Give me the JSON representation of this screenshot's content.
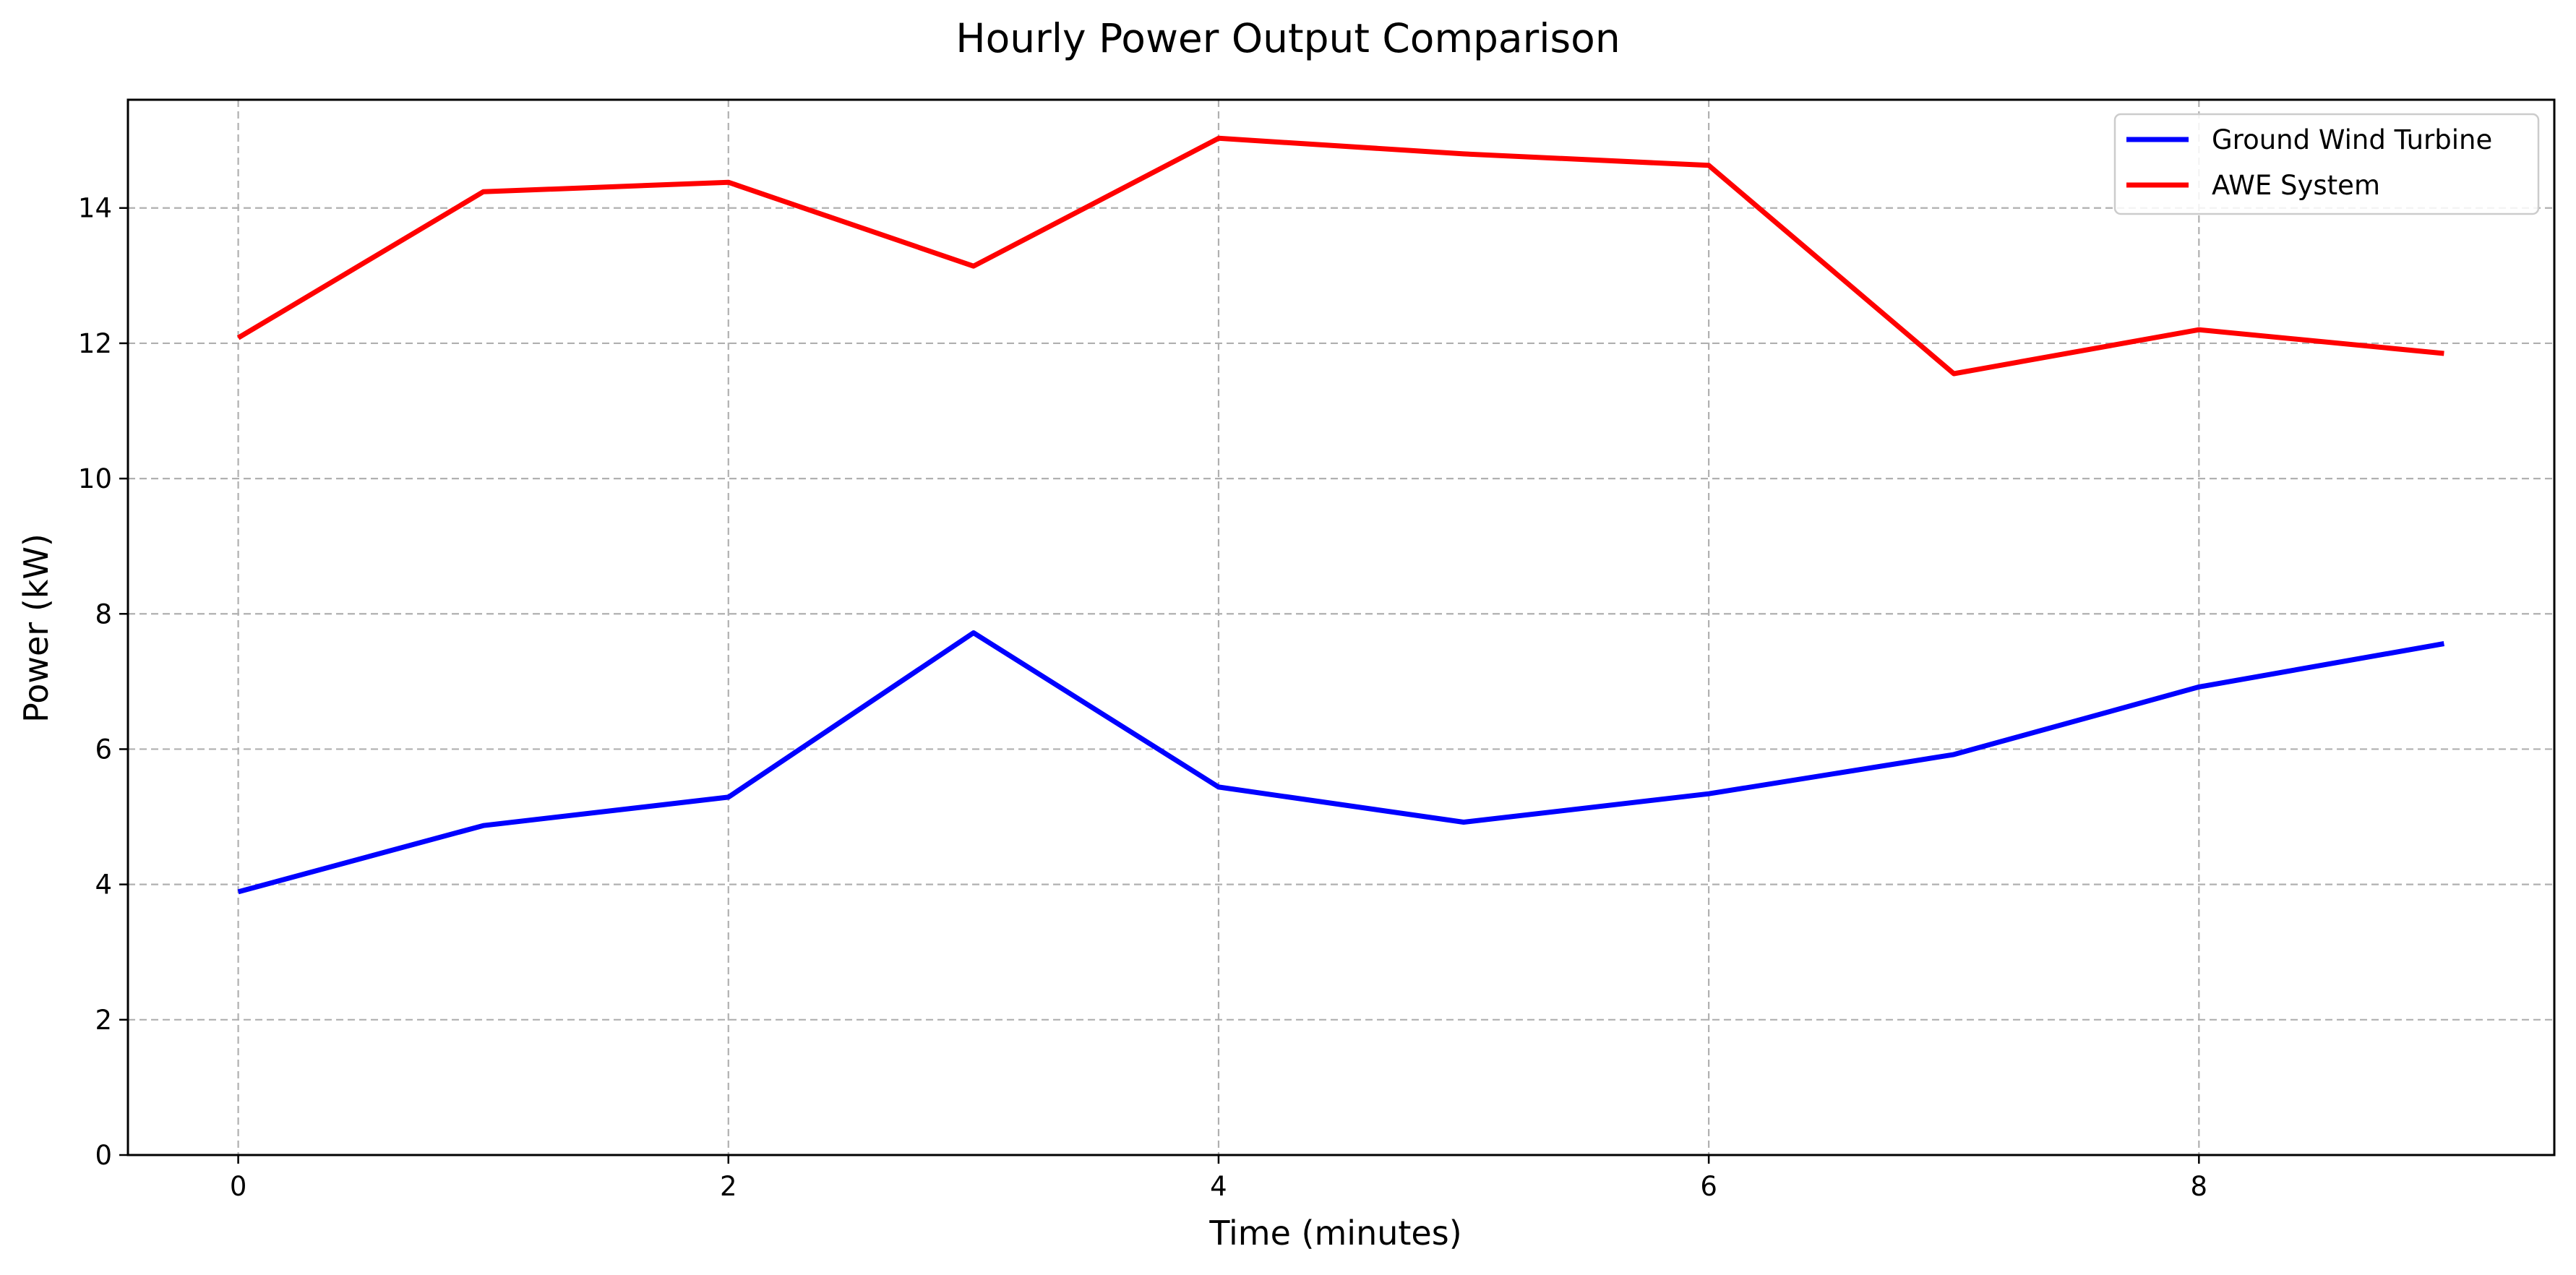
{
  "chart_data": {
    "type": "line",
    "title": "Hourly Power Output Comparison",
    "xlabel": "Time (minutes)",
    "ylabel": "Power (kW)",
    "xlim": [
      -0.45,
      9.45
    ],
    "ylim": [
      0,
      15.6
    ],
    "xticks": [
      0,
      2,
      4,
      6,
      8
    ],
    "yticks": [
      0,
      2,
      4,
      6,
      8,
      10,
      12,
      14
    ],
    "grid": true,
    "legend_position": "top-right",
    "x": [
      0,
      1,
      2,
      3,
      4,
      5,
      6,
      7,
      8,
      9
    ],
    "series": [
      {
        "name": "Ground Wind Turbine",
        "color": "#0000ff",
        "values": [
          3.89,
          4.87,
          5.29,
          7.72,
          5.44,
          4.92,
          5.34,
          5.92,
          6.92,
          7.56
        ]
      },
      {
        "name": "AWE System",
        "color": "#ff0000",
        "values": [
          12.08,
          14.24,
          14.38,
          13.14,
          15.03,
          14.8,
          14.63,
          11.55,
          12.2,
          11.85
        ]
      }
    ]
  }
}
